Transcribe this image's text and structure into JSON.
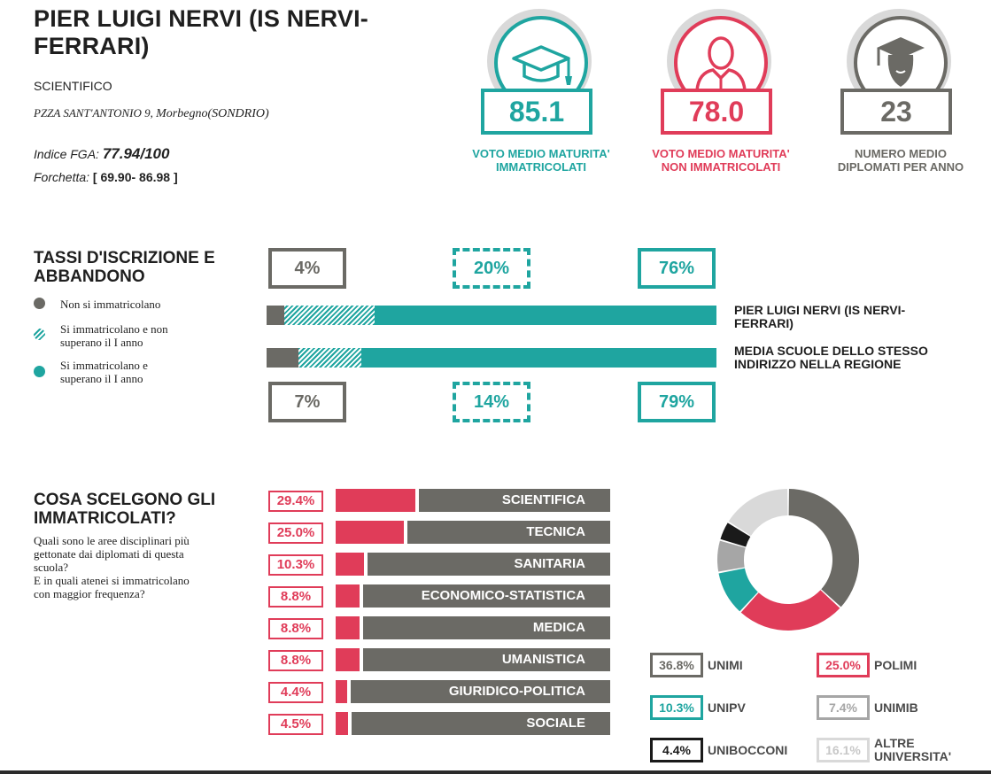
{
  "school": {
    "name": "PIER LUIGI NERVI (IS NERVI-FERRARI)",
    "type": "SCIENTIFICO",
    "address_prefix": "PZZA SANT'ANTONIO 9, ",
    "address_city": "Morbegno(SONDRIO)",
    "fga_label": "Indice FGA: ",
    "fga_value": "77.94/100",
    "fork_label": "Forchetta: ",
    "fork_value": "[ 69.90- 86.98 ]"
  },
  "stats": [
    {
      "value": "85.1",
      "caption_1": "VOTO MEDIO MATURITA'",
      "caption_2": "IMMATRICOLATI",
      "color": "#1fa5a0",
      "icon": "graduation-cap-icon"
    },
    {
      "value": "78.0",
      "caption_1": "VOTO MEDIO MATURITA'",
      "caption_2": "NON IMMATRICOLATI",
      "color": "#e03c59",
      "icon": "person-icon"
    },
    {
      "value": "23",
      "caption_1": "NUMERO MEDIO",
      "caption_2": "DIPLOMATI PER ANNO",
      "color": "#6b6a65",
      "icon": "graduate-head-icon"
    }
  ],
  "enrollment": {
    "title_1": "TASSI D'ISCRIZIONE E",
    "title_2": "ABBANDONO",
    "legend": [
      {
        "label_1": "Non si immatricolano",
        "label_2": "",
        "color": "#6b6a65"
      },
      {
        "label_1": "Si immatricolano e non",
        "label_2": "superano il I anno",
        "color": "#1fa5a0"
      },
      {
        "label_1": "Si immatricolano e",
        "label_2": "superano il I anno",
        "color": "#1fa5a0"
      }
    ],
    "school_row": {
      "label_1": "PIER LUIGI NERVI (IS NERVI-",
      "label_2": "FERRARI)",
      "values": [
        "4%",
        "20%",
        "76%"
      ],
      "fractions": [
        0.04,
        0.2,
        0.76
      ]
    },
    "region_row": {
      "label_1": "MEDIA SCUOLE DELLO STESSO",
      "label_2": "INDIRIZZO NELLA REGIONE",
      "values": [
        "7%",
        "14%",
        "79%"
      ],
      "fractions": [
        0.07,
        0.14,
        0.79
      ]
    }
  },
  "choices": {
    "title_1": "COSA SCELGONO GLI",
    "title_2": "IMMATRICOLATI?",
    "desc_1": "Quali sono le aree disciplinari più",
    "desc_2": "gettonate dai diplomati di questa",
    "desc_3": "scuola?",
    "desc_4": "E in quali atenei si immatricolano",
    "desc_5": "con maggior frequenza?",
    "areas": [
      {
        "pct": "29.4%",
        "value": 29.4,
        "name": "SCIENTIFICA"
      },
      {
        "pct": "25.0%",
        "value": 25.0,
        "name": "TECNICA"
      },
      {
        "pct": "10.3%",
        "value": 10.3,
        "name": "SANITARIA"
      },
      {
        "pct": "8.8%",
        "value": 8.8,
        "name": "ECONOMICO-STATISTICA"
      },
      {
        "pct": "8.8%",
        "value": 8.8,
        "name": "MEDICA"
      },
      {
        "pct": "8.8%",
        "value": 8.8,
        "name": "UMANISTICA"
      },
      {
        "pct": "4.4%",
        "value": 4.4,
        "name": "GIURIDICO-POLITICA"
      },
      {
        "pct": "4.5%",
        "value": 4.5,
        "name": "SOCIALE"
      }
    ]
  },
  "chart_data": {
    "type": "pie",
    "slices": [
      {
        "label": "UNIMI",
        "pct": "36.8%",
        "value": 36.8,
        "color": "#6b6a65"
      },
      {
        "label": "POLIMI",
        "pct": "25.0%",
        "value": 25.0,
        "color": "#e03c59"
      },
      {
        "label": "UNIPV",
        "pct": "10.3%",
        "value": 10.3,
        "color": "#1fa5a0"
      },
      {
        "label": "UNIMIB",
        "pct": "7.4%",
        "value": 7.4,
        "color": "#a6a6a6"
      },
      {
        "label": "UNIBOCCONI",
        "pct": "4.4%",
        "value": 4.4,
        "color": "#1a1a1a"
      },
      {
        "label": "ALTRE UNIVERSITA'",
        "pct": "16.1%",
        "value": 16.1,
        "color": "#d9d9d9"
      }
    ]
  }
}
